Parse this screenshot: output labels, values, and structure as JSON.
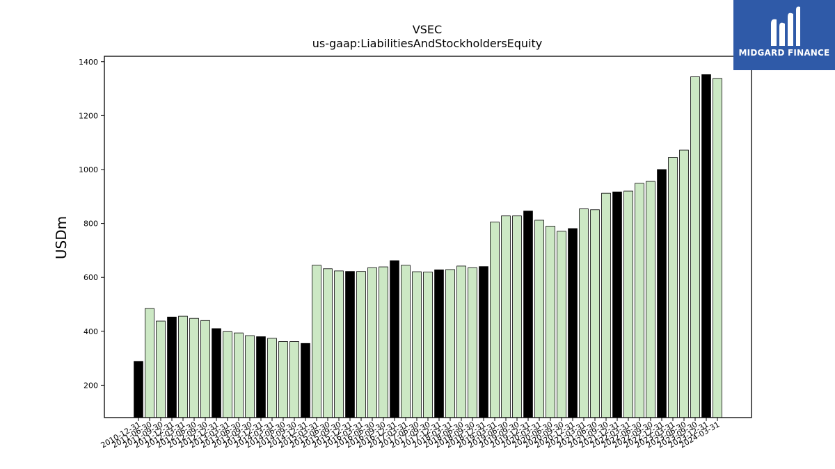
{
  "chart_data": {
    "type": "bar",
    "title": "VSEC",
    "subtitle": "us-gaap:LiabilitiesAndStockholdersEquity",
    "xlabel": "",
    "ylabel": "USDm",
    "ylim": [
      80,
      1420
    ],
    "yticks": [
      200,
      400,
      600,
      800,
      1000,
      1200,
      1400
    ],
    "grid": false,
    "colors": {
      "annual": "#000000",
      "quarter": "#cce8c4",
      "edge": "#000000"
    },
    "categories": [
      "2010-12-31",
      "2011-06-30",
      "2011-09-30",
      "2011-12-31",
      "2012-03-31",
      "2012-06-30",
      "2012-09-30",
      "2012-12-31",
      "2013-03-31",
      "2013-06-30",
      "2013-09-30",
      "2013-12-31",
      "2014-03-31",
      "2014-06-30",
      "2014-09-30",
      "2014-12-31",
      "2015-03-31",
      "2015-06-30",
      "2015-09-30",
      "2015-12-31",
      "2016-03-31",
      "2016-06-30",
      "2016-09-30",
      "2016-12-31",
      "2017-03-31",
      "2017-06-30",
      "2017-09-30",
      "2017-12-31",
      "2018-03-31",
      "2018-06-30",
      "2018-09-30",
      "2018-12-31",
      "2019-03-31",
      "2019-06-30",
      "2019-09-30",
      "2019-12-31",
      "2020-03-31",
      "2020-06-30",
      "2020-09-30",
      "2020-12-31",
      "2021-03-31",
      "2021-06-30",
      "2021-09-30",
      "2021-12-31",
      "2022-03-31",
      "2022-06-30",
      "2022-09-30",
      "2022-12-31",
      "2023-03-31",
      "2023-06-30",
      "2023-09-30",
      "2023-12-31",
      "2024-03-31"
    ],
    "values": [
      288,
      485,
      438,
      453,
      456,
      448,
      440,
      410,
      399,
      394,
      384,
      380,
      374,
      362,
      362,
      355,
      645,
      632,
      624,
      622,
      622,
      636,
      639,
      662,
      645,
      621,
      620,
      628,
      629,
      642,
      636,
      640,
      805,
      828,
      828,
      846,
      812,
      790,
      771,
      781,
      854,
      851,
      912,
      917,
      920,
      949,
      956,
      1000,
      1045,
      1072,
      1344,
      1352,
      1338
    ],
    "annual": [
      true,
      false,
      false,
      true,
      false,
      false,
      false,
      true,
      false,
      false,
      false,
      true,
      false,
      false,
      false,
      true,
      false,
      false,
      false,
      true,
      false,
      false,
      false,
      true,
      false,
      false,
      false,
      true,
      false,
      false,
      false,
      true,
      false,
      false,
      false,
      true,
      false,
      false,
      false,
      true,
      false,
      false,
      false,
      true,
      false,
      false,
      false,
      true,
      false,
      false,
      false,
      true,
      false
    ]
  },
  "logo": {
    "text": "MIDGARD FINANCE",
    "icon": "midgard-logo-icon"
  }
}
